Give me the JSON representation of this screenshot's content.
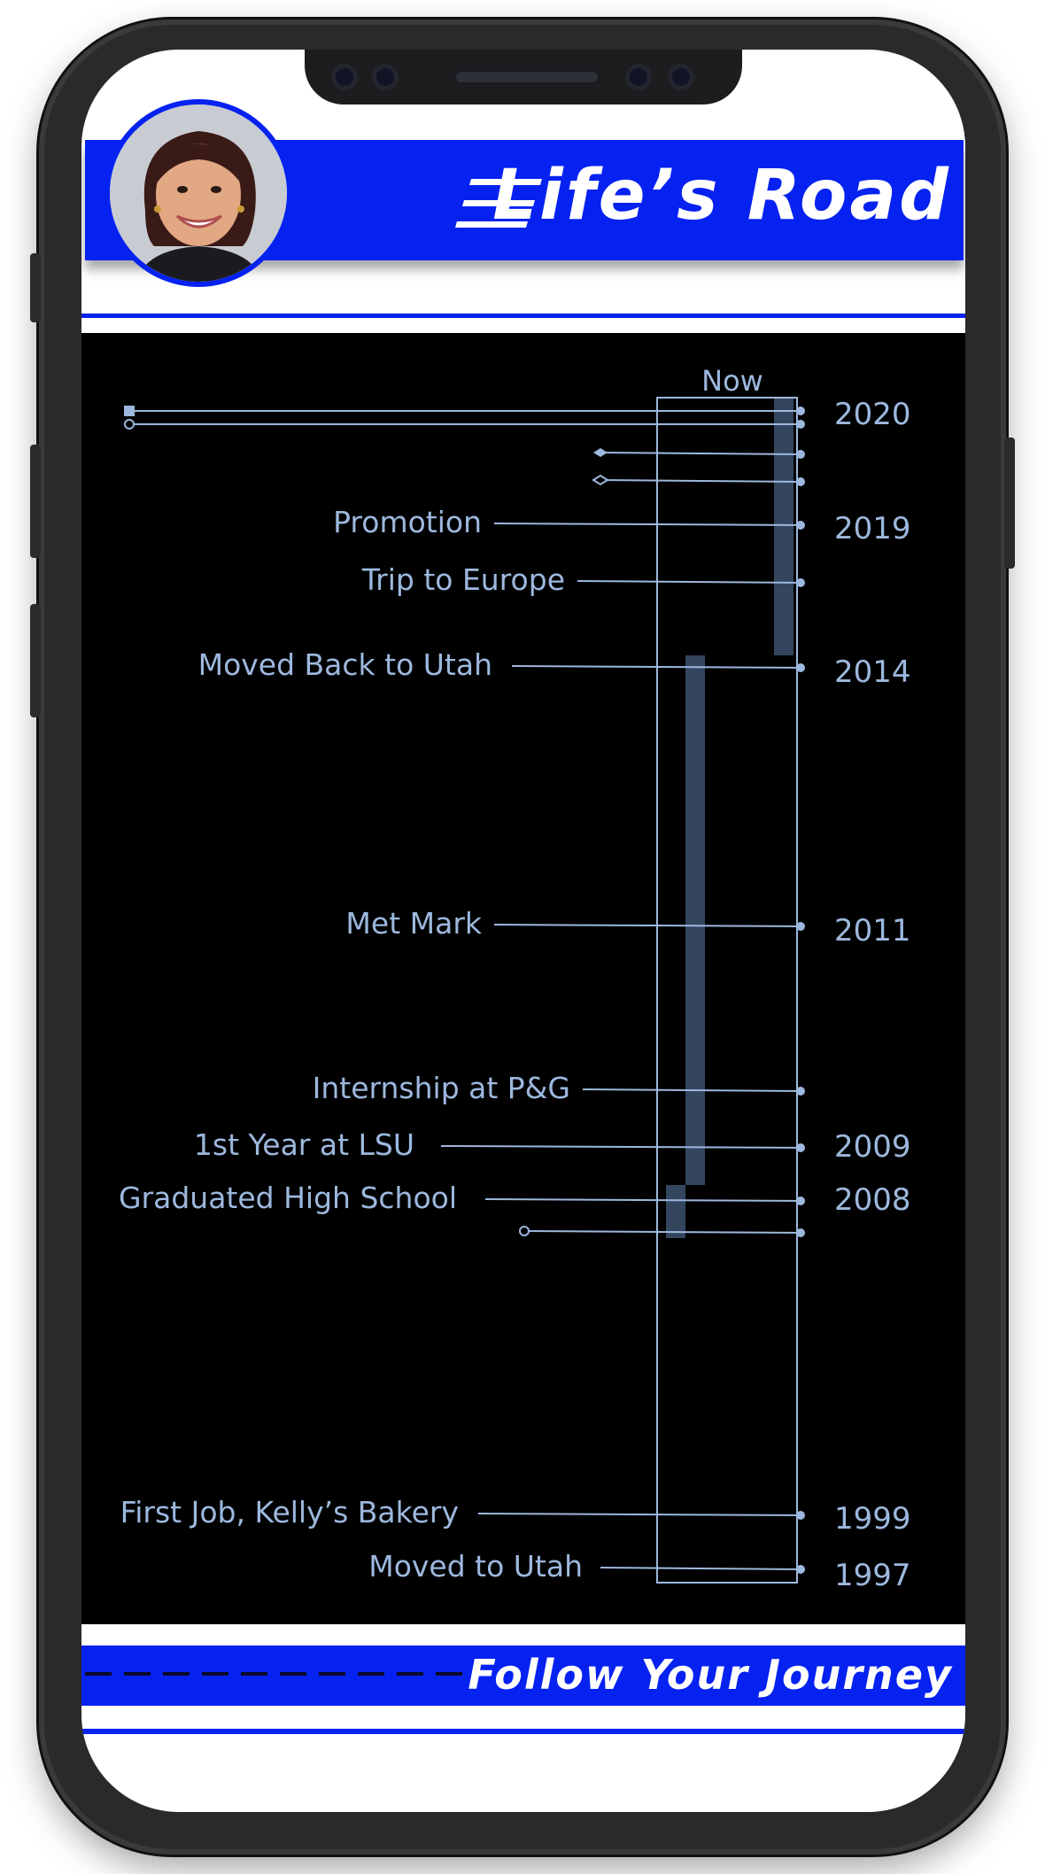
{
  "header": {
    "title": "Life’s Road"
  },
  "footer": {
    "title": "Follow Your Journey"
  },
  "colors": {
    "brand_blue": "#0522f1",
    "timeline_line": "#9db8de",
    "bar_fill": "#34465e",
    "background": "#000000"
  },
  "timeline": {
    "now_label": "Now",
    "year_labels": [
      "2020",
      "2019",
      "2014",
      "2011",
      "2009",
      "2008",
      "1999",
      "1997"
    ],
    "events": [
      {
        "label": "Promotion"
      },
      {
        "label": "Trip to Europe"
      },
      {
        "label": "Moved Back to Utah"
      },
      {
        "label": "Met Mark"
      },
      {
        "label": "Internship at P&G"
      },
      {
        "label": "1st Year at LSU"
      },
      {
        "label": "Graduated High School"
      },
      {
        "label": "First Job, Kelly’s Bakery"
      },
      {
        "label": "Moved to Utah"
      }
    ]
  }
}
